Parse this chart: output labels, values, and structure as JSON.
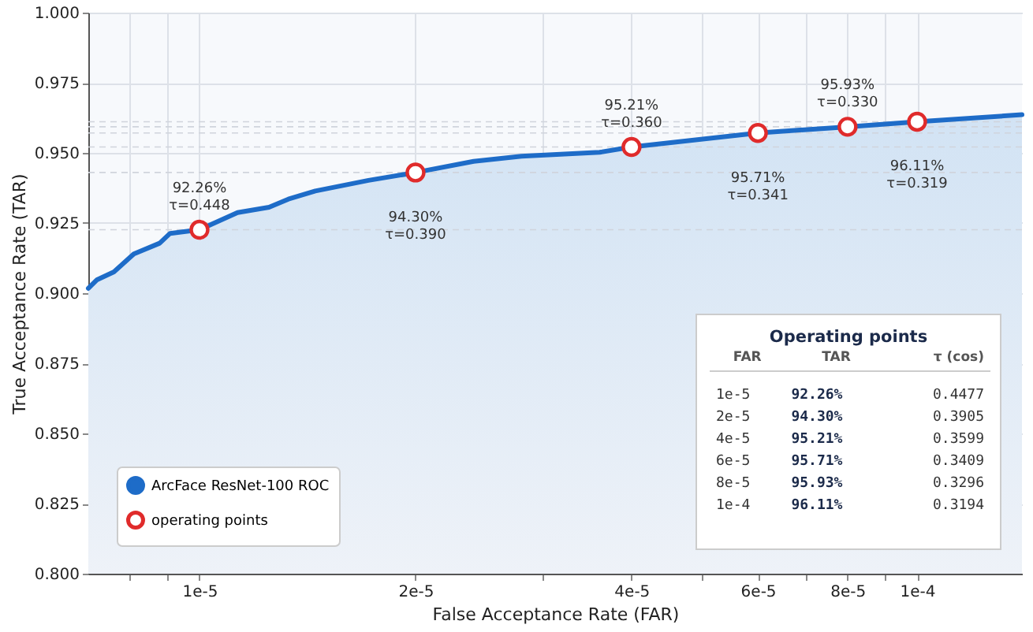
{
  "chart_data": [
    {
      "type": "area",
      "xlabel": "False Acceptance Rate (FAR)",
      "ylabel": "True Acceptance Rate (TAR)",
      "log": "x",
      "xlim": [
        7e-06,
        0.00014
      ],
      "ylim": [
        0.8,
        1.0
      ],
      "xticks": [
        {
          "value": 8e-06,
          "label": null
        },
        {
          "value": 9e-06,
          "label": null
        },
        {
          "value": 1e-05,
          "label": "1e-5"
        },
        {
          "value": 2e-05,
          "label": "2e-5"
        },
        {
          "value": 3e-05,
          "label": null
        },
        {
          "value": 4e-05,
          "label": "4e-5"
        },
        {
          "value": 5e-05,
          "label": null
        },
        {
          "value": 6e-05,
          "label": "6e-5"
        },
        {
          "value": 7e-05,
          "label": null
        },
        {
          "value": 8e-05,
          "label": "8e-5"
        },
        {
          "value": 9e-05,
          "label": null
        },
        {
          "value": 0.0001,
          "label": "1e-4"
        }
      ],
      "yticks": [
        {
          "value": 0.8,
          "label": "0.800"
        },
        {
          "value": 0.825,
          "label": "0.825"
        },
        {
          "value": 0.85,
          "label": "0.850"
        },
        {
          "value": 0.875,
          "label": "0.875"
        },
        {
          "value": 0.9,
          "label": "0.900"
        },
        {
          "value": 0.925,
          "label": "0.925"
        },
        {
          "value": 0.95,
          "label": "0.950"
        },
        {
          "value": 0.975,
          "label": "0.975"
        },
        {
          "value": 1.0,
          "label": "1.000"
        }
      ],
      "grid": true,
      "legend": "bottom left",
      "series": [
        {
          "name": "ArcFace ResNet-100 ROC",
          "color": "#1e6cc8",
          "x": [
            7e-06,
            7.2e-06,
            7.6e-06,
            8.1e-06,
            8.8e-06,
            9.1e-06,
            1e-05,
            1.13e-05,
            1.25e-05,
            1.33e-05,
            1.45e-05,
            1.72e-05,
            2e-05,
            2.41e-05,
            2.81e-05,
            3.61e-05,
            4e-05,
            6e-05,
            8e-05,
            0.0001,
            0.00014
          ],
          "values": [
            0.9017,
            0.9048,
            0.9076,
            0.914,
            0.9178,
            0.9213,
            0.9226,
            0.9287,
            0.9306,
            0.9335,
            0.9364,
            0.9402,
            0.943,
            0.947,
            0.9488,
            0.9502,
            0.9521,
            0.9571,
            0.9593,
            0.9611,
            0.9636
          ]
        },
        {
          "name": "operating points",
          "type": "scatter",
          "color": "#e02b2b",
          "marker": "circle",
          "x": [
            1e-05,
            2e-05,
            4e-05,
            6e-05,
            8e-05,
            0.0001
          ],
          "values": [
            0.9226,
            0.943,
            0.9521,
            0.9571,
            0.9593,
            0.9611
          ]
        }
      ],
      "ref_lines": [
        {
          "axis": "y",
          "value": 0.9226,
          "color": "#d0d4dc",
          "line_style": "dashed"
        },
        {
          "axis": "y",
          "value": 0.943,
          "color": "#d0d4dc",
          "line_style": "dashed"
        },
        {
          "axis": "y",
          "value": 0.9521,
          "color": "#d0d4dc",
          "line_style": "dashed"
        },
        {
          "axis": "y",
          "value": 0.9571,
          "color": "#d0d4dc",
          "line_style": "dashed"
        },
        {
          "axis": "y",
          "value": 0.9593,
          "color": "#d0d4dc",
          "line_style": "dashed"
        },
        {
          "axis": "y",
          "value": 0.9611,
          "color": "#d0d4dc",
          "line_style": "dashed"
        }
      ],
      "annotations": [
        {
          "text": "92.26%\nτ=0.448",
          "x": 1e-05,
          "y": 0.9226
        },
        {
          "text": "94.30%\nτ=0.390",
          "x": 2e-05,
          "y": 0.943
        },
        {
          "text": "95.21%\nτ=0.360",
          "x": 4e-05,
          "y": 0.9521
        },
        {
          "text": "95.71%\nτ=0.341",
          "x": 6e-05,
          "y": 0.9571
        },
        {
          "text": "95.93%\nτ=0.330",
          "x": 8e-05,
          "y": 0.9593
        },
        {
          "text": "96.11%\nτ=0.319",
          "x": 0.0001,
          "y": 0.9611
        },
        "Operating points",
        "FAR",
        "TAR",
        "τ (cos)",
        "1e-5",
        "92.26%",
        "0.4477",
        "2e-5",
        "94.30%",
        "0.3905",
        "4e-5",
        "95.21%",
        "0.3599",
        "6e-5",
        "95.71%",
        "0.3409",
        "8e-5",
        "95.93%",
        "0.3296",
        "1e-4",
        "96.11%",
        "0.3194"
      ]
    }
  ]
}
